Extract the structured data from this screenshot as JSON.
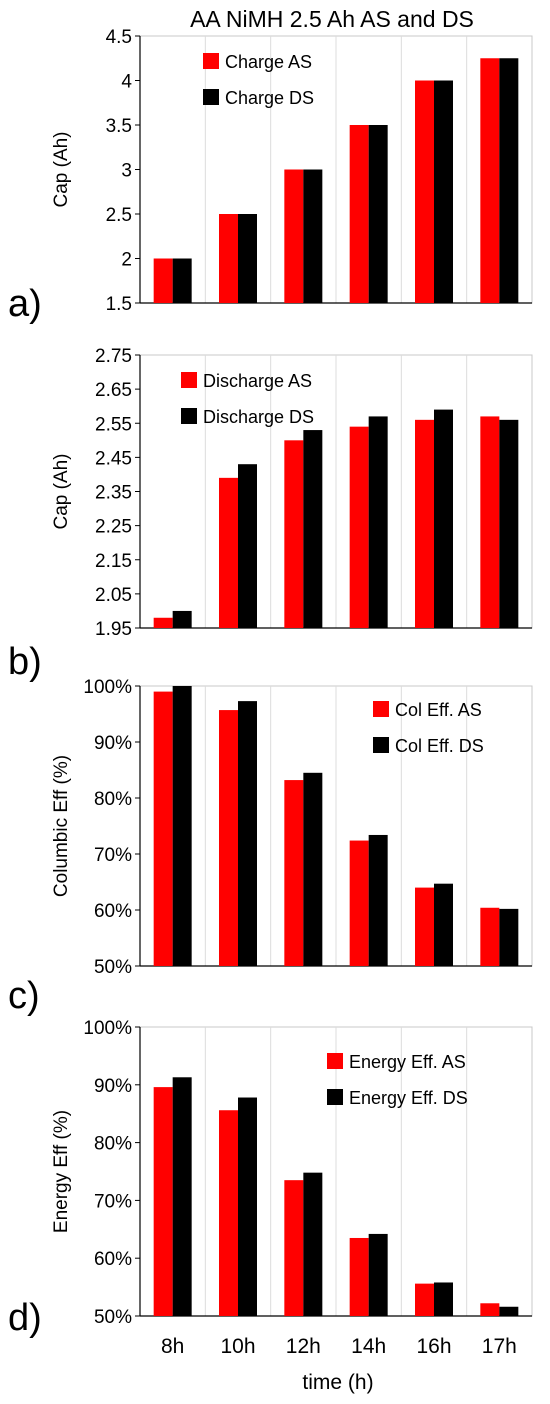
{
  "figure": {
    "title": "AA NiMH 2.5 Ah AS and DS",
    "categories": [
      "8h",
      "10h",
      "12h",
      "14h",
      "16h",
      "17h"
    ],
    "xlabel": "time (h)"
  },
  "chart_data": [
    {
      "type": "bar",
      "panel": "a)",
      "ylabel": "Cap (Ah)",
      "ylim": [
        1.5,
        4.5
      ],
      "yticks": [
        1.5,
        2,
        2.5,
        3,
        3.5,
        4,
        4.5
      ],
      "ytick_labels": [
        "1.5",
        "2",
        "2.5",
        "3",
        "3.5",
        "4",
        "4.5"
      ],
      "categories": [
        "8h",
        "10h",
        "12h",
        "14h",
        "16h",
        "17h"
      ],
      "legend": "top-left",
      "series": [
        {
          "name": "Charge AS",
          "color": "#ff0000",
          "values": [
            2.0,
            2.5,
            3.0,
            3.5,
            4.0,
            4.25
          ]
        },
        {
          "name": "Charge DS",
          "color": "#000000",
          "values": [
            2.0,
            2.5,
            3.0,
            3.5,
            4.0,
            4.25
          ]
        }
      ]
    },
    {
      "type": "bar",
      "panel": "b)",
      "ylabel": "Cap (Ah)",
      "ylim": [
        1.95,
        2.75
      ],
      "yticks": [
        1.95,
        2.05,
        2.15,
        2.25,
        2.35,
        2.45,
        2.55,
        2.65,
        2.75
      ],
      "ytick_labels": [
        "1.95",
        "2.05",
        "2.15",
        "2.25",
        "2.35",
        "2.45",
        "2.55",
        "2.65",
        "2.75"
      ],
      "categories": [
        "8h",
        "10h",
        "12h",
        "14h",
        "16h",
        "17h"
      ],
      "legend": "top-left",
      "series": [
        {
          "name": "Discharge AS",
          "color": "#ff0000",
          "values": [
            1.98,
            2.39,
            2.5,
            2.54,
            2.56,
            2.57
          ]
        },
        {
          "name": "Discharge DS",
          "color": "#000000",
          "values": [
            2.0,
            2.43,
            2.53,
            2.57,
            2.59,
            2.56
          ]
        }
      ]
    },
    {
      "type": "bar",
      "panel": "c)",
      "ylabel": "Columbic Eff (%)",
      "ylim": [
        50,
        100
      ],
      "yticks": [
        50,
        60,
        70,
        80,
        90,
        100
      ],
      "ytick_labels": [
        "50%",
        "60%",
        "70%",
        "80%",
        "90%",
        "100%"
      ],
      "categories": [
        "8h",
        "10h",
        "12h",
        "14h",
        "16h",
        "17h"
      ],
      "legend": "top-right",
      "series": [
        {
          "name": "Col Eff. AS",
          "color": "#ff0000",
          "values": [
            99,
            95.7,
            83.2,
            72.4,
            64.0,
            60.4
          ]
        },
        {
          "name": "Col Eff.  DS",
          "color": "#000000",
          "values": [
            100,
            97.3,
            84.5,
            73.4,
            64.7,
            60.2
          ]
        }
      ]
    },
    {
      "type": "bar",
      "panel": "d)",
      "ylabel": "Energy Eff (%)",
      "ylim": [
        50,
        100
      ],
      "yticks": [
        50,
        60,
        70,
        80,
        90,
        100
      ],
      "ytick_labels": [
        "50%",
        "60%",
        "70%",
        "80%",
        "90%",
        "100%"
      ],
      "categories": [
        "8h",
        "10h",
        "12h",
        "14h",
        "16h",
        "17h"
      ],
      "xlabel": "time (h)",
      "legend": "top-right",
      "series": [
        {
          "name": "Energy Eff. AS",
          "color": "#ff0000",
          "values": [
            89.6,
            85.6,
            73.5,
            63.5,
            55.6,
            52.2
          ]
        },
        {
          "name": "Energy Eff. DS",
          "color": "#000000",
          "values": [
            91.3,
            87.8,
            74.8,
            64.2,
            55.8,
            51.6
          ]
        }
      ]
    }
  ]
}
